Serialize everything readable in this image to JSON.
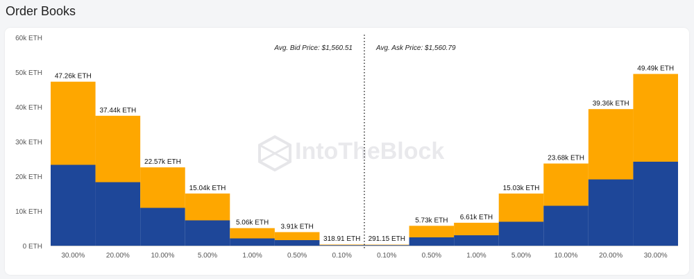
{
  "page": {
    "title": "Order Books"
  },
  "watermark": {
    "text": "IntoTheBlock"
  },
  "colors": {
    "inner": "#1e4799",
    "outer": "#fea700",
    "axis": "#cfcfcf",
    "midline": "#222222"
  },
  "chart_data": {
    "type": "bar",
    "title": "Order Books",
    "yunit": "ETH",
    "ylim": [
      0,
      60000
    ],
    "yticks": [
      0,
      10000,
      20000,
      30000,
      40000,
      50000,
      60000
    ],
    "ytick_labels": [
      "0 ETH",
      "10k ETH",
      "20k ETH",
      "30k ETH",
      "40k ETH",
      "50k ETH",
      "60k ETH"
    ],
    "annotations": {
      "avg_bid": "Avg. Bid Price: $1,560.51",
      "avg_ask": "Avg. Ask Price: $1,560.79"
    },
    "categories": [
      "30.00%",
      "20.00%",
      "10.00%",
      "5.00%",
      "1.00%",
      "0.50%",
      "0.10%",
      "0.10%",
      "0.50%",
      "1.00%",
      "5.00%",
      "10.00%",
      "20.00%",
      "30.00%"
    ],
    "sides": [
      "bid",
      "bid",
      "bid",
      "bid",
      "bid",
      "bid",
      "bid",
      "ask",
      "ask",
      "ask",
      "ask",
      "ask",
      "ask",
      "ask"
    ],
    "series": [
      {
        "values": [
          23300,
          18300,
          10900,
          7300,
          2100,
          1600,
          150,
          150,
          2400,
          3000,
          6900,
          11500,
          19100,
          24200
        ]
      },
      {
        "values": [
          47260,
          37440,
          22570,
          15040,
          5060,
          3910,
          318.91,
          291.15,
          5730,
          6610,
          15030,
          23680,
          39360,
          49490
        ]
      }
    ],
    "data_labels": [
      "47.26k ETH",
      "37.44k ETH",
      "22.57k ETH",
      "15.04k ETH",
      "5.06k ETH",
      "3.91k ETH",
      "318.91 ETH",
      "291.15 ETH",
      "5.73k ETH",
      "6.61k ETH",
      "15.03k ETH",
      "23.68k ETH",
      "39.36k ETH",
      "49.49k ETH"
    ]
  }
}
